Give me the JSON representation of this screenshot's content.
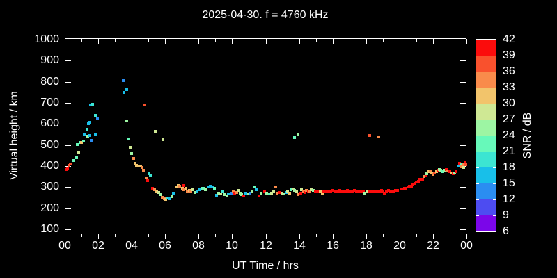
{
  "title": "2025-04-30. f = 4760 kHz",
  "x_axis": {
    "label": "UT Time / hrs",
    "tick_labels": [
      "00",
      "02",
      "04",
      "06",
      "08",
      "10",
      "12",
      "14",
      "16",
      "18",
      "20",
      "22",
      "00"
    ],
    "range_hours": [
      0,
      24
    ],
    "major_tick_hours": 2,
    "minor_tick_hours": 1
  },
  "y_axis": {
    "label": "Virtual height / km",
    "tick_labels": [
      "100",
      "200",
      "300",
      "400",
      "500",
      "600",
      "700",
      "800",
      "900",
      "1000"
    ],
    "range_km": [
      100,
      1000
    ]
  },
  "colorbar": {
    "label": "SNR / dB",
    "tick_labels": [
      "42",
      "39",
      "36",
      "33",
      "30",
      "27",
      "24",
      "21",
      "18",
      "15",
      "12",
      "9",
      "6"
    ],
    "segment_colors_top_to_bottom": [
      "#fb0c0c",
      "#f9512d",
      "#f98b4b",
      "#f2c46b",
      "#cfe894",
      "#9df5a3",
      "#67f9ba",
      "#3ce5d2",
      "#18bfe9",
      "#2b8df1",
      "#4d4cf1",
      "#7b06e9"
    ]
  },
  "colors": {
    "background": "#000000",
    "frame": "#ffffff",
    "text": "#ffffff"
  },
  "chart_data": {
    "type": "scatter",
    "title": "2025-04-30. f = 4760 kHz",
    "xlabel": "UT Time / hrs",
    "ylabel": "Virtual height / km",
    "xlim_hours": [
      0,
      24
    ],
    "ylim_km": [
      100,
      1000
    ],
    "color_scale": {
      "label": "SNR / dB",
      "min": 6,
      "max": 42,
      "step": 3
    },
    "point_format": "[ut_hours, virtual_height_km, color_bucket_index] where bucket 0 = 42-39 dB (red) ... 11 = 9-6 dB (violet)",
    "points": [
      [
        0.08,
        385,
        0
      ],
      [
        0.17,
        391,
        0
      ],
      [
        0.25,
        404,
        1
      ],
      [
        0.33,
        411,
        1
      ],
      [
        0.54,
        427,
        6
      ],
      [
        0.71,
        440,
        6
      ],
      [
        0.75,
        503,
        6
      ],
      [
        0.83,
        466,
        4
      ],
      [
        0.92,
        513,
        6
      ],
      [
        1.0,
        513,
        3
      ],
      [
        1.12,
        520,
        6
      ],
      [
        1.16,
        549,
        8
      ],
      [
        1.33,
        576,
        7
      ],
      [
        1.37,
        543,
        5
      ],
      [
        1.41,
        602,
        8
      ],
      [
        1.46,
        607,
        8
      ],
      [
        1.46,
        545,
        8
      ],
      [
        1.54,
        689,
        8
      ],
      [
        1.58,
        522,
        9
      ],
      [
        1.66,
        695,
        7
      ],
      [
        1.83,
        640,
        7
      ],
      [
        1.83,
        548,
        8
      ],
      [
        1.95,
        624,
        9
      ],
      [
        3.49,
        807,
        9
      ],
      [
        3.54,
        748,
        8
      ],
      [
        3.7,
        764,
        8
      ],
      [
        3.7,
        614,
        5
      ],
      [
        3.83,
        529,
        6
      ],
      [
        3.91,
        490,
        4
      ],
      [
        3.99,
        460,
        5
      ],
      [
        4.12,
        437,
        2
      ],
      [
        4.2,
        414,
        3
      ],
      [
        4.28,
        404,
        3
      ],
      [
        4.41,
        401,
        3
      ],
      [
        4.53,
        401,
        3
      ],
      [
        4.62,
        394,
        2
      ],
      [
        4.7,
        381,
        2
      ],
      [
        4.74,
        689,
        1
      ],
      [
        4.87,
        345,
        2
      ],
      [
        4.95,
        332,
        0
      ],
      [
        5.03,
        365,
        7
      ],
      [
        5.12,
        358,
        7
      ],
      [
        5.24,
        296,
        0
      ],
      [
        5.37,
        287,
        2
      ],
      [
        5.41,
        565,
        4
      ],
      [
        5.49,
        277,
        3
      ],
      [
        5.61,
        274,
        4
      ],
      [
        5.74,
        264,
        5
      ],
      [
        5.82,
        251,
        2
      ],
      [
        5.87,
        525,
        4
      ],
      [
        5.95,
        245,
        2
      ],
      [
        6.03,
        241,
        3
      ],
      [
        6.16,
        248,
        7
      ],
      [
        6.28,
        245,
        8
      ],
      [
        6.41,
        254,
        5
      ],
      [
        6.49,
        271,
        8
      ],
      [
        6.66,
        300,
        3
      ],
      [
        6.78,
        307,
        3
      ],
      [
        6.86,
        303,
        2
      ],
      [
        7.03,
        296,
        3
      ],
      [
        7.07,
        307,
        0
      ],
      [
        7.11,
        287,
        2
      ],
      [
        7.24,
        294,
        3
      ],
      [
        7.32,
        281,
        2
      ],
      [
        7.45,
        284,
        3
      ],
      [
        7.53,
        277,
        2
      ],
      [
        7.66,
        287,
        4
      ],
      [
        7.78,
        274,
        5
      ],
      [
        7.91,
        277,
        8
      ],
      [
        8.07,
        287,
        8
      ],
      [
        8.2,
        296,
        6
      ],
      [
        8.28,
        293,
        6
      ],
      [
        8.41,
        287,
        5
      ],
      [
        8.61,
        300,
        8
      ],
      [
        8.7,
        303,
        8
      ],
      [
        8.82,
        300,
        8
      ],
      [
        8.95,
        293,
        6
      ],
      [
        9.07,
        261,
        8
      ],
      [
        9.2,
        271,
        5
      ],
      [
        9.32,
        267,
        4
      ],
      [
        9.45,
        277,
        7
      ],
      [
        9.57,
        264,
        5
      ],
      [
        9.7,
        258,
        5
      ],
      [
        9.78,
        267,
        8
      ],
      [
        9.95,
        271,
        9
      ],
      [
        10.07,
        277,
        2
      ],
      [
        10.16,
        271,
        0
      ],
      [
        10.28,
        274,
        2
      ],
      [
        10.41,
        284,
        4
      ],
      [
        10.49,
        271,
        5
      ],
      [
        10.57,
        264,
        5
      ],
      [
        10.7,
        258,
        0
      ],
      [
        10.82,
        271,
        8
      ],
      [
        10.99,
        267,
        5
      ],
      [
        11.07,
        271,
        9
      ],
      [
        11.2,
        277,
        5
      ],
      [
        11.32,
        300,
        6
      ],
      [
        11.45,
        287,
        8
      ],
      [
        11.61,
        258,
        0
      ],
      [
        11.74,
        271,
        5
      ],
      [
        11.95,
        281,
        0
      ],
      [
        12.07,
        271,
        5
      ],
      [
        12.24,
        267,
        6
      ],
      [
        12.37,
        271,
        4
      ],
      [
        12.49,
        281,
        4
      ],
      [
        12.61,
        300,
        2
      ],
      [
        12.7,
        271,
        2
      ],
      [
        12.86,
        274,
        0
      ],
      [
        12.99,
        271,
        4
      ],
      [
        13.11,
        267,
        5
      ],
      [
        13.24,
        274,
        8
      ],
      [
        13.32,
        281,
        4
      ],
      [
        13.45,
        271,
        3
      ],
      [
        13.53,
        287,
        6
      ],
      [
        13.66,
        290,
        4
      ],
      [
        13.74,
        284,
        5
      ],
      [
        13.74,
        535,
        6
      ],
      [
        13.86,
        277,
        4
      ],
      [
        13.95,
        551,
        5
      ],
      [
        13.95,
        264,
        2
      ],
      [
        14.11,
        271,
        0
      ],
      [
        14.16,
        287,
        4
      ],
      [
        14.28,
        281,
        2
      ],
      [
        14.36,
        274,
        0
      ],
      [
        14.44,
        283,
        2
      ],
      [
        14.56,
        280,
        0
      ],
      [
        14.65,
        277,
        2
      ],
      [
        14.73,
        287,
        4
      ],
      [
        14.85,
        283,
        5
      ],
      [
        14.97,
        277,
        0
      ],
      [
        15.06,
        280,
        0
      ],
      [
        15.18,
        277,
        0
      ],
      [
        15.27,
        277,
        3
      ],
      [
        15.39,
        273,
        3
      ],
      [
        15.47,
        280,
        0
      ],
      [
        15.6,
        280,
        0
      ],
      [
        15.68,
        277,
        0
      ],
      [
        15.81,
        277,
        0
      ],
      [
        15.89,
        280,
        0
      ],
      [
        16.01,
        283,
        0
      ],
      [
        16.14,
        280,
        0
      ],
      [
        16.22,
        277,
        0
      ],
      [
        16.35,
        280,
        0
      ],
      [
        16.43,
        283,
        0
      ],
      [
        16.56,
        280,
        0
      ],
      [
        16.64,
        277,
        0
      ],
      [
        16.76,
        280,
        0
      ],
      [
        16.89,
        283,
        0
      ],
      [
        16.97,
        280,
        0
      ],
      [
        17.1,
        277,
        0
      ],
      [
        17.18,
        280,
        0
      ],
      [
        17.3,
        283,
        0
      ],
      [
        17.43,
        280,
        0
      ],
      [
        17.51,
        277,
        0
      ],
      [
        17.64,
        280,
        0
      ],
      [
        17.72,
        280,
        0
      ],
      [
        17.85,
        277,
        0
      ],
      [
        17.93,
        270,
        5
      ],
      [
        18.05,
        277,
        4
      ],
      [
        18.18,
        280,
        0
      ],
      [
        18.22,
        545,
        1
      ],
      [
        18.26,
        277,
        0
      ],
      [
        18.39,
        280,
        0
      ],
      [
        18.51,
        280,
        0
      ],
      [
        18.6,
        277,
        0
      ],
      [
        18.72,
        277,
        0
      ],
      [
        18.76,
        538,
        2
      ],
      [
        18.85,
        277,
        0
      ],
      [
        18.93,
        283,
        0
      ],
      [
        19.01,
        280,
        0
      ],
      [
        19.1,
        273,
        0
      ],
      [
        19.22,
        277,
        0
      ],
      [
        19.35,
        283,
        0
      ],
      [
        19.43,
        280,
        0
      ],
      [
        19.56,
        277,
        0
      ],
      [
        19.68,
        280,
        0
      ],
      [
        19.77,
        283,
        0
      ],
      [
        19.89,
        283,
        0
      ],
      [
        20.09,
        290,
        0
      ],
      [
        20.17,
        290,
        0
      ],
      [
        20.3,
        293,
        0
      ],
      [
        20.38,
        296,
        0
      ],
      [
        20.51,
        300,
        0
      ],
      [
        20.59,
        303,
        0
      ],
      [
        20.72,
        303,
        0
      ],
      [
        20.8,
        310,
        0
      ],
      [
        20.92,
        316,
        0
      ],
      [
        21.01,
        323,
        0
      ],
      [
        21.13,
        329,
        0
      ],
      [
        21.22,
        336,
        0
      ],
      [
        21.38,
        339,
        0
      ],
      [
        21.46,
        349,
        2
      ],
      [
        21.59,
        355,
        0
      ],
      [
        21.63,
        365,
        5
      ],
      [
        21.76,
        372,
        3
      ],
      [
        21.84,
        378,
        2
      ],
      [
        21.92,
        368,
        3
      ],
      [
        22.01,
        362,
        2
      ],
      [
        22.09,
        368,
        1
      ],
      [
        22.22,
        375,
        3
      ],
      [
        22.3,
        381,
        0
      ],
      [
        22.38,
        385,
        5
      ],
      [
        22.46,
        381,
        5
      ],
      [
        22.59,
        375,
        6
      ],
      [
        22.67,
        381,
        5
      ],
      [
        22.8,
        385,
        0
      ],
      [
        22.88,
        378,
        2
      ],
      [
        23.01,
        372,
        0
      ],
      [
        23.09,
        368,
        3
      ],
      [
        23.22,
        365,
        0
      ],
      [
        23.3,
        368,
        5
      ],
      [
        23.38,
        372,
        0
      ],
      [
        23.51,
        401,
        8
      ],
      [
        23.59,
        414,
        0
      ],
      [
        23.67,
        411,
        6
      ],
      [
        23.72,
        398,
        2
      ],
      [
        23.8,
        408,
        2
      ],
      [
        23.84,
        394,
        4
      ],
      [
        23.92,
        418,
        0
      ],
      [
        23.97,
        408,
        1
      ]
    ]
  }
}
